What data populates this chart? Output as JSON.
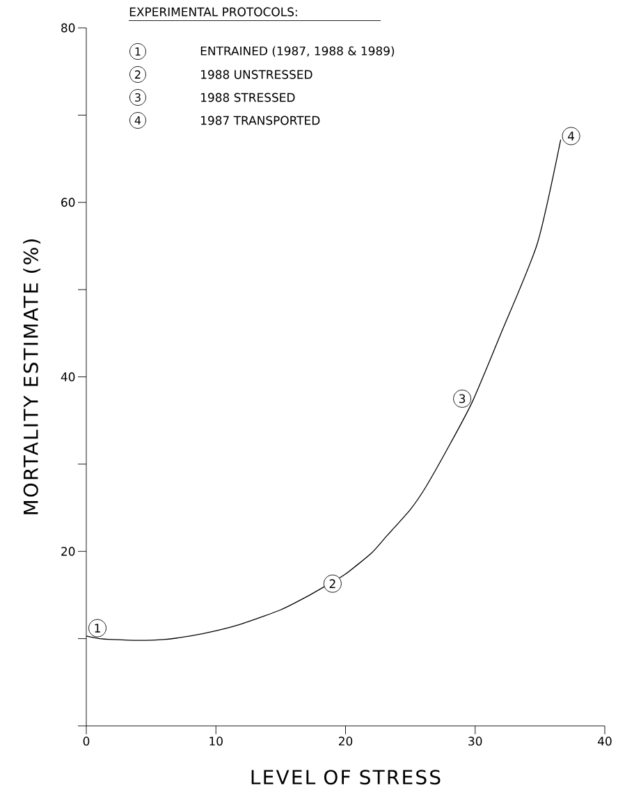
{
  "chart_data": {
    "type": "line",
    "xlabel": "LEVEL OF STRESS",
    "ylabel": "MORTALITY ESTIMATE (%)",
    "x": [
      0,
      1,
      2,
      4,
      6,
      8,
      10,
      12,
      15,
      17,
      19,
      20,
      22,
      23.2,
      25,
      26.2,
      28.1,
      29.8,
      32,
      34.8,
      36.6
    ],
    "series": [
      {
        "color": "#000000",
        "values": [
          10.3,
          10.0,
          9.9,
          9.8,
          9.9,
          10.3,
          10.9,
          11.7,
          13.3,
          14.8,
          16.5,
          17.4,
          19.8,
          21.8,
          24.8,
          27.4,
          32.4,
          37.2,
          45,
          55.3,
          67.2
        ]
      }
    ],
    "xlim": [
      0,
      40
    ],
    "ylim": [
      0,
      80
    ],
    "xticks": [
      0,
      10,
      20,
      30,
      40
    ],
    "yticks": [
      {
        "value": 0,
        "label": null
      },
      {
        "value": 10,
        "label": null
      },
      20,
      {
        "value": 30,
        "label": null
      },
      40,
      {
        "value": 50,
        "label": null
      },
      60,
      {
        "value": 70,
        "label": null
      },
      80
    ],
    "marker": "none",
    "line_style": "solid",
    "annotations": [
      {
        "text": "1",
        "x": 0.86,
        "y": 11.2
      },
      {
        "text": "2",
        "x": 19.0,
        "y": 16.3
      },
      {
        "text": "3",
        "x": 29.0,
        "y": 37.5
      },
      {
        "text": "4",
        "x": 37.4,
        "y": 67.6
      },
      "EXPERIMENTAL PROTOCOLS:",
      "ENTRAINED (1987, 1988 & 1989)",
      "1988 UNSTRESSED",
      "1988 STRESSED",
      "1987 TRANSPORTED"
    ]
  }
}
